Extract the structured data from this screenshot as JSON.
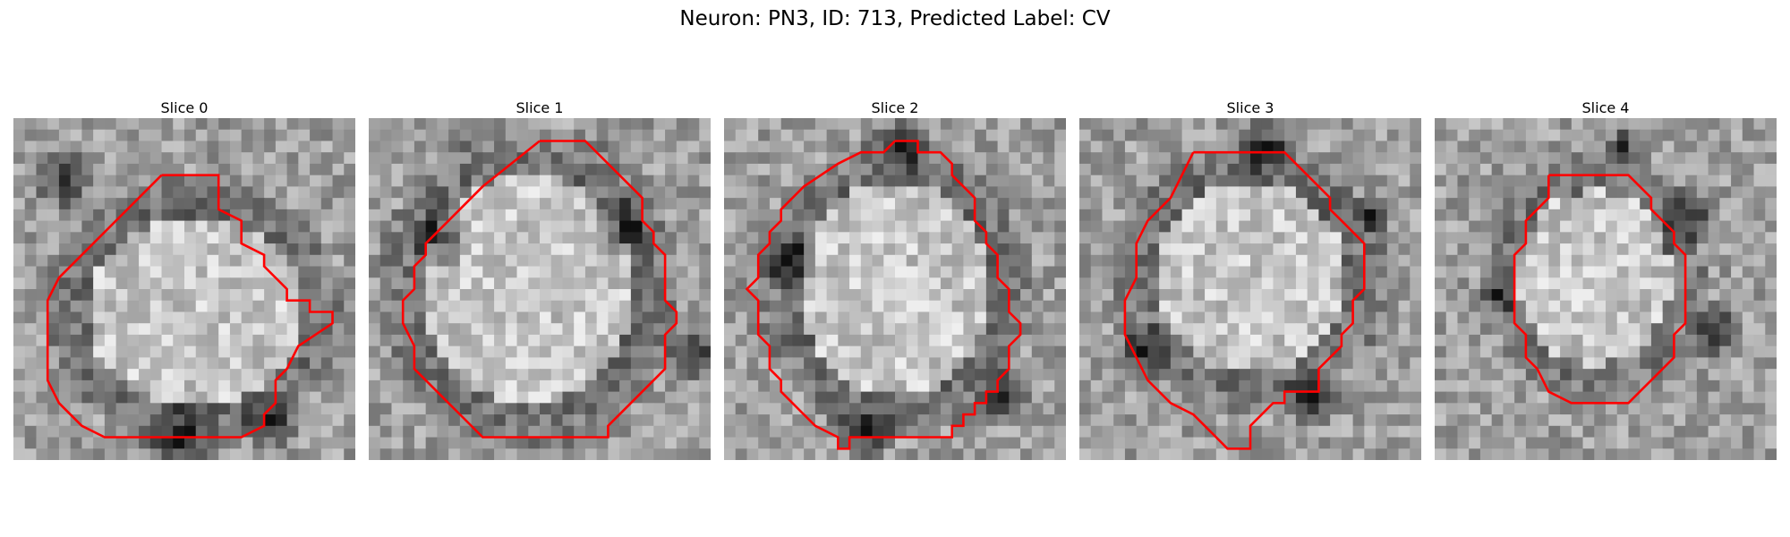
{
  "figure": {
    "title": "Neuron: PN3, ID: 713, Predicted Label: CV"
  },
  "style": {
    "contour_color": "#ff0000",
    "colormap": "grayscale"
  },
  "panels": [
    {
      "title": "Slice 0",
      "icon": "slice-0-image"
    },
    {
      "title": "Slice 1",
      "icon": "slice-1-image"
    },
    {
      "title": "Slice 2",
      "icon": "slice-2-image"
    },
    {
      "title": "Slice 3",
      "icon": "slice-3-image"
    },
    {
      "title": "Slice 4",
      "icon": "slice-4-image"
    }
  ]
}
